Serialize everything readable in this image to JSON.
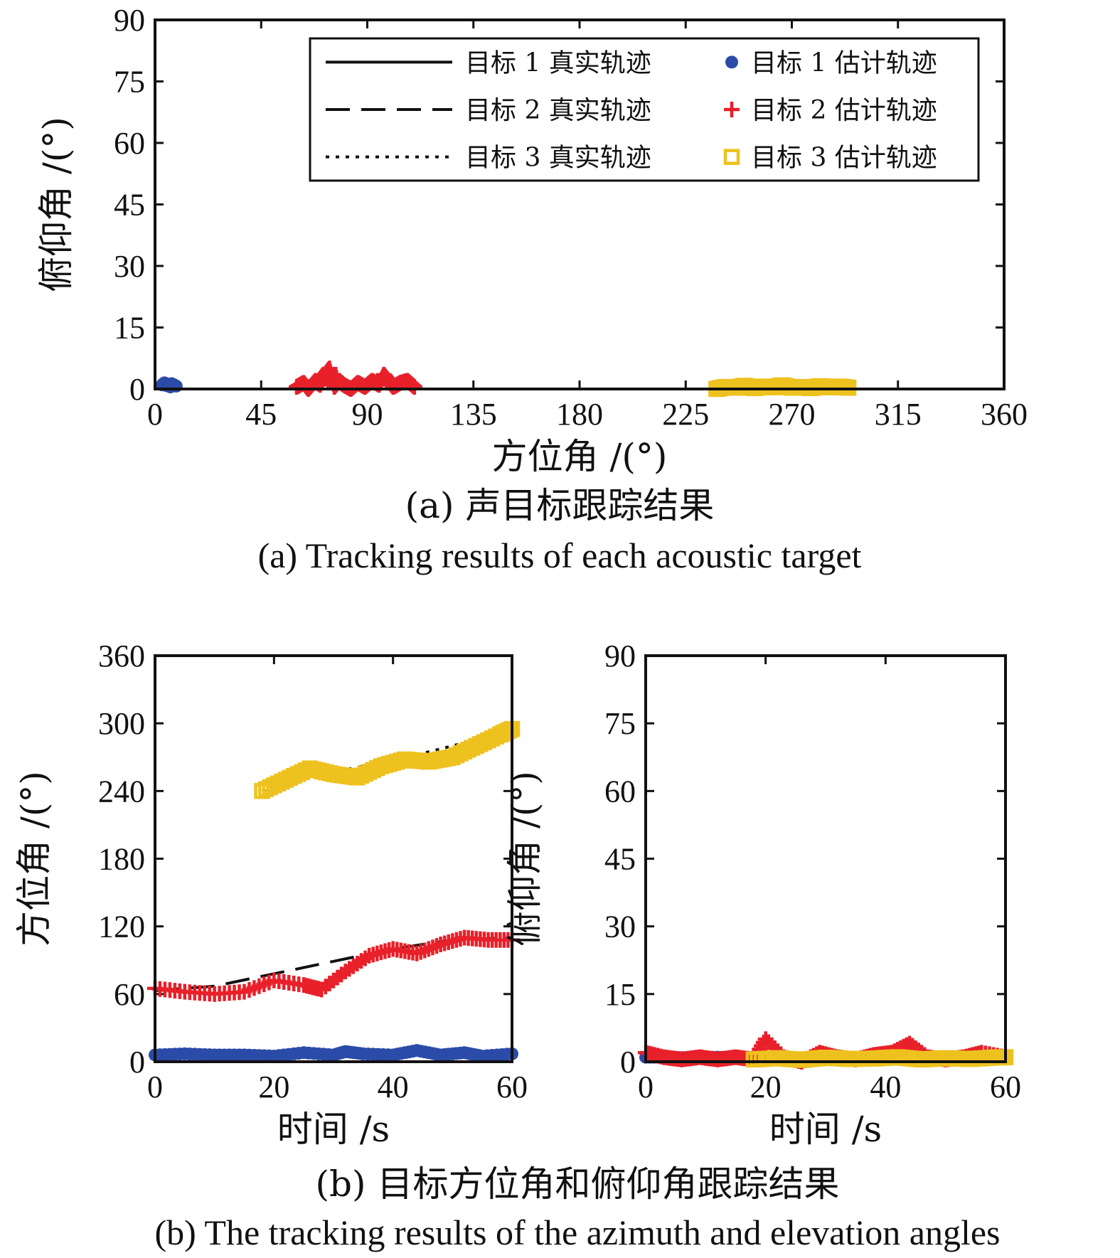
{
  "legend": [
    {
      "label": "目标 1 真实轨迹",
      "kind": "line",
      "dash": "solid"
    },
    {
      "label": "目标 1 估计轨迹",
      "kind": "marker",
      "marker": "circle",
      "color": "#2b4ba8"
    },
    {
      "label": "目标 2 真实轨迹",
      "kind": "line",
      "dash": "dashed"
    },
    {
      "label": "目标 2 估计轨迹",
      "kind": "marker",
      "marker": "plus",
      "color": "#e8202a"
    },
    {
      "label": "目标 3 真实轨迹",
      "kind": "line",
      "dash": "dotted"
    },
    {
      "label": "目标 3 估计轨迹",
      "kind": "marker",
      "marker": "square",
      "color": "#eec21e"
    }
  ],
  "captions": {
    "a_cn": "(a) 声目标跟踪结果",
    "a_en": "(a) Tracking results of each acoustic target",
    "b_cn": "(b) 目标方位角和俯仰角跟踪结果",
    "b_en": "(b) The tracking results of the azimuth and elevation angles"
  },
  "chart_data": [
    {
      "id": "a",
      "type": "scatter",
      "xlabel": "方位角 /(°)",
      "ylabel": "俯仰角 /(°)",
      "xlim": [
        0,
        360
      ],
      "ylim": [
        0,
        90
      ],
      "xticks": [
        0,
        45,
        90,
        135,
        180,
        225,
        270,
        315,
        360
      ],
      "yticks": [
        0,
        15,
        30,
        45,
        60,
        75,
        90
      ],
      "legend_position": "top-right",
      "series": [
        {
          "name": "目标 1 估计轨迹",
          "marker": "circle",
          "x": [
            3,
            4,
            5,
            6,
            6.5,
            7,
            8,
            9
          ],
          "y": [
            1,
            1.5,
            0.8,
            1.2,
            0.5,
            1.3,
            1,
            0.7
          ]
        },
        {
          "name": "目标 2 估计轨迹",
          "marker": "plus",
          "x": [
            60,
            63,
            65,
            68,
            70,
            72,
            74,
            76,
            78,
            80,
            83,
            86,
            89,
            92,
            95,
            97,
            99,
            101,
            104,
            107,
            110
          ],
          "y": [
            0.5,
            1.5,
            0,
            2,
            1,
            3.5,
            5,
            0.5,
            2,
            1,
            0,
            1.5,
            0.5,
            2,
            1,
            3.5,
            2,
            0.5,
            1.5,
            2,
            0.5
          ]
        },
        {
          "name": "目标 3 估计轨迹",
          "marker": "square",
          "x": [
            238,
            242,
            246,
            250,
            254,
            258,
            262,
            266,
            270,
            274,
            278,
            282,
            286,
            290,
            294
          ],
          "y": [
            0,
            0.5,
            0.3,
            0.8,
            0.2,
            0.6,
            0.4,
            0.9,
            0.3,
            0.5,
            0.2,
            0.7,
            0.4,
            0.6,
            0.3
          ]
        }
      ]
    },
    {
      "id": "b-left",
      "type": "line",
      "xlabel": "时间 /s",
      "ylabel": "方位角 /(°)",
      "xlim": [
        0,
        60
      ],
      "ylim": [
        0,
        360
      ],
      "xticks": [
        0,
        20,
        40,
        60
      ],
      "yticks": [
        0,
        60,
        120,
        180,
        240,
        300,
        360
      ],
      "series": [
        {
          "name": "目标 1 真实轨迹",
          "style": "solid",
          "x": [
            0,
            60
          ],
          "y": [
            6,
            6
          ]
        },
        {
          "name": "目标 2 真实轨迹",
          "style": "dashed",
          "x": [
            0,
            10,
            20,
            30,
            40,
            50,
            60
          ],
          "y": [
            63,
            67,
            78,
            89,
            100,
            108,
            110
          ]
        },
        {
          "name": "目标 3 真实轨迹",
          "style": "dotted",
          "x": [
            18,
            25,
            30,
            35,
            40,
            50,
            60
          ],
          "y": [
            240,
            255,
            257,
            262,
            267,
            280,
            296
          ]
        },
        {
          "name": "目标 1 估计轨迹",
          "marker": "circle",
          "x": [
            0,
            5,
            10,
            15,
            20,
            25,
            30,
            32,
            35,
            40,
            44,
            48,
            52,
            55,
            60
          ],
          "y": [
            6,
            7,
            6,
            6,
            5,
            8,
            6,
            9,
            7,
            6,
            10,
            6,
            8,
            5,
            7
          ]
        },
        {
          "name": "目标 2 估计轨迹",
          "marker": "plus",
          "x": [
            0,
            5,
            10,
            15,
            20,
            25,
            28,
            32,
            36,
            40,
            44,
            48,
            52,
            56,
            60
          ],
          "y": [
            65,
            62,
            60,
            62,
            72,
            68,
            64,
            80,
            94,
            100,
            96,
            104,
            110,
            108,
            108
          ]
        },
        {
          "name": "目标 3 估计轨迹",
          "marker": "square",
          "x": [
            18,
            22,
            26,
            30,
            34,
            38,
            42,
            46,
            50,
            54,
            58,
            60
          ],
          "y": [
            240,
            250,
            260,
            255,
            252,
            262,
            268,
            266,
            270,
            280,
            290,
            295
          ]
        }
      ]
    },
    {
      "id": "b-right",
      "type": "scatter",
      "xlabel": "时间 /s",
      "ylabel": "俯仰角 /(°)",
      "xlim": [
        0,
        60
      ],
      "ylim": [
        0,
        90
      ],
      "xticks": [
        0,
        20,
        40,
        60
      ],
      "yticks": [
        0,
        15,
        30,
        45,
        60,
        75,
        90
      ],
      "series": [
        {
          "name": "目标 1 估计轨迹",
          "marker": "circle",
          "x": [
            0,
            4,
            8,
            12,
            16
          ],
          "y": [
            1,
            1,
            0.8,
            1,
            0.9
          ]
        },
        {
          "name": "目标 2 估计轨迹",
          "marker": "plus",
          "x": [
            0,
            3,
            6,
            9,
            12,
            15,
            18,
            20,
            23,
            26,
            29,
            32,
            35,
            38,
            41,
            44,
            47,
            50,
            53,
            56,
            60
          ],
          "y": [
            2,
            1,
            0.5,
            1,
            0.5,
            1,
            0.5,
            5,
            1,
            0,
            2,
            1,
            0.5,
            1.5,
            2,
            4,
            1,
            0.5,
            1,
            2,
            1
          ]
        },
        {
          "name": "目标 3 估计轨迹",
          "marker": "square",
          "x": [
            18,
            22,
            26,
            30,
            34,
            38,
            42,
            46,
            50,
            54,
            58,
            60
          ],
          "y": [
            0.5,
            0.8,
            0.4,
            0.9,
            0.6,
            0.7,
            1,
            0.5,
            0.8,
            0.6,
            0.9,
            1
          ]
        }
      ]
    }
  ]
}
